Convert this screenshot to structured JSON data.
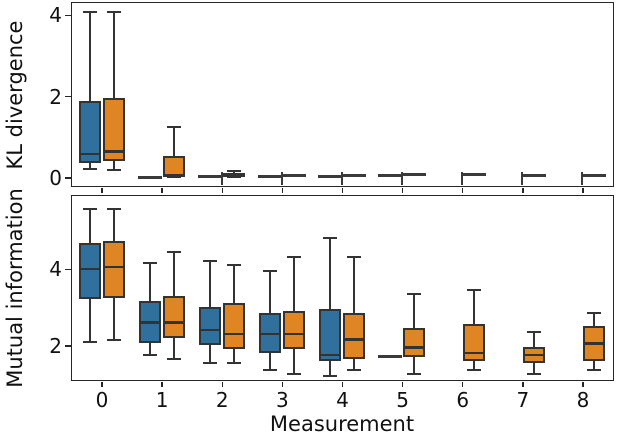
{
  "figure": {
    "background": "#ffffff"
  },
  "colors": {
    "series_blue": "#2F709D",
    "series_orange": "#E08523",
    "box_edge": "#333333",
    "spine": "#262626",
    "text": "#111111"
  },
  "chart_data": [
    {
      "type": "box",
      "id": "kl_divergence",
      "title": "",
      "ylabel": "KL divergence",
      "xlabel": "",
      "categories": [
        "0",
        "1",
        "2",
        "3",
        "4",
        "5",
        "6",
        "7",
        "8"
      ],
      "yticks": [
        0,
        2,
        4
      ],
      "ylim": [
        -0.2,
        4.29
      ],
      "grid": false,
      "legend": "none",
      "show_xticklabels": false,
      "zero_stub_categories": [
        2,
        3,
        4,
        5,
        6,
        7,
        8
      ],
      "series": [
        {
          "name": "series-blue",
          "color": "#2F709D",
          "boxes": [
            {
              "cat": 0,
              "whislo": 0.2,
              "q1": 0.36,
              "med": 0.58,
              "q3": 1.87,
              "whishi": 4.08
            },
            {
              "cat": 1,
              "flat": 0.0
            },
            {
              "cat": 2,
              "flat": 0.02
            },
            {
              "cat": 3,
              "flat": 0.03
            },
            {
              "cat": 4,
              "flat": 0.02
            },
            {
              "cat": 5,
              "flat": 0.04
            }
          ]
        },
        {
          "name": "series-orange",
          "color": "#E08523",
          "boxes": [
            {
              "cat": 0,
              "whislo": 0.17,
              "q1": 0.4,
              "med": 0.64,
              "q3": 1.95,
              "whishi": 4.08
            },
            {
              "cat": 1,
              "whislo": 0.02,
              "q1": 0.02,
              "med": 0.05,
              "q3": 0.53,
              "whishi": 1.25
            },
            {
              "cat": 2,
              "whislo": 0.01,
              "q1": 0.01,
              "med": 0.03,
              "q3": 0.1,
              "whishi": 0.16
            },
            {
              "cat": 3,
              "flat": 0.05
            },
            {
              "cat": 4,
              "flat": 0.04
            },
            {
              "cat": 5,
              "flat": 0.06
            },
            {
              "cat": 6,
              "flat": 0.06
            },
            {
              "cat": 7,
              "flat": 0.04
            },
            {
              "cat": 8,
              "flat": 0.05
            }
          ]
        }
      ]
    },
    {
      "type": "box",
      "id": "mutual_information",
      "title": "",
      "ylabel": "Mutual information",
      "xlabel": "Measurement",
      "categories": [
        "0",
        "1",
        "2",
        "3",
        "4",
        "5",
        "6",
        "7",
        "8"
      ],
      "yticks": [
        2,
        4
      ],
      "ylim": [
        1.11,
        5.9
      ],
      "grid": false,
      "legend": "none",
      "show_xticklabels": true,
      "zero_stub_categories": [],
      "series": [
        {
          "name": "series-blue",
          "color": "#2F709D",
          "boxes": [
            {
              "cat": 0,
              "whislo": 2.1,
              "q1": 3.22,
              "med": 4.0,
              "q3": 4.68,
              "whishi": 5.55
            },
            {
              "cat": 1,
              "whislo": 1.75,
              "q1": 2.05,
              "med": 2.6,
              "q3": 3.15,
              "whishi": 4.15
            },
            {
              "cat": 2,
              "whislo": 1.55,
              "q1": 2.0,
              "med": 2.4,
              "q3": 3.0,
              "whishi": 4.2
            },
            {
              "cat": 3,
              "whislo": 1.35,
              "q1": 1.8,
              "med": 2.3,
              "q3": 2.85,
              "whishi": 3.95
            },
            {
              "cat": 4,
              "whislo": 1.2,
              "q1": 1.6,
              "med": 1.75,
              "q3": 2.95,
              "whishi": 4.8
            },
            {
              "cat": 5,
              "flat": 1.72
            }
          ]
        },
        {
          "name": "series-orange",
          "color": "#E08523",
          "boxes": [
            {
              "cat": 0,
              "whislo": 2.15,
              "q1": 3.25,
              "med": 4.05,
              "q3": 4.72,
              "whishi": 5.55
            },
            {
              "cat": 1,
              "whislo": 1.65,
              "q1": 2.2,
              "med": 2.6,
              "q3": 3.3,
              "whishi": 4.45
            },
            {
              "cat": 2,
              "whislo": 1.55,
              "q1": 1.9,
              "med": 2.3,
              "q3": 3.1,
              "whishi": 4.1
            },
            {
              "cat": 3,
              "whislo": 1.25,
              "q1": 1.9,
              "med": 2.3,
              "q3": 2.9,
              "whishi": 4.3
            },
            {
              "cat": 4,
              "whislo": 1.35,
              "q1": 1.65,
              "med": 2.15,
              "q3": 2.85,
              "whishi": 4.3
            },
            {
              "cat": 5,
              "whislo": 1.25,
              "q1": 1.7,
              "med": 1.95,
              "q3": 2.45,
              "whishi": 3.35
            },
            {
              "cat": 6,
              "whislo": 1.35,
              "q1": 1.6,
              "med": 1.8,
              "q3": 2.55,
              "whishi": 3.45
            },
            {
              "cat": 7,
              "whislo": 1.25,
              "q1": 1.55,
              "med": 1.75,
              "q3": 1.95,
              "whishi": 2.35
            },
            {
              "cat": 8,
              "whislo": 1.35,
              "q1": 1.6,
              "med": 2.05,
              "q3": 2.5,
              "whishi": 2.85
            }
          ]
        }
      ]
    }
  ]
}
